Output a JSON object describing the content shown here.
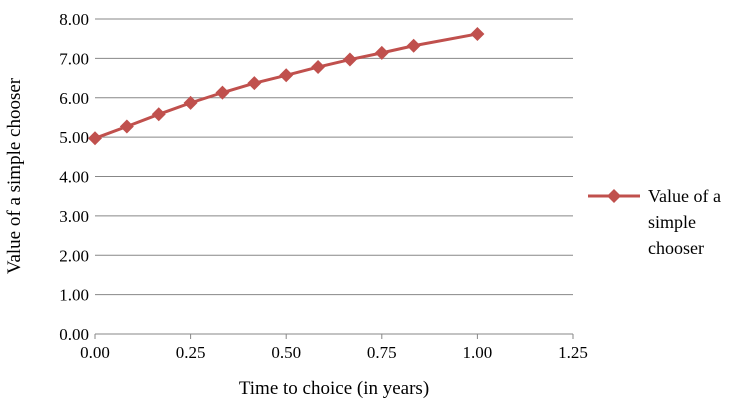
{
  "chart_data": {
    "type": "line",
    "title": "",
    "xlabel": "Time to choice (in years)",
    "ylabel": "Value of a simple chooser",
    "xlim": [
      0,
      1.25
    ],
    "ylim": [
      0,
      8
    ],
    "x_ticks": [
      "0.00",
      "0.25",
      "0.50",
      "0.75",
      "1.00",
      "1.25"
    ],
    "y_ticks": [
      "0.00",
      "1.00",
      "2.00",
      "3.00",
      "4.00",
      "5.00",
      "6.00",
      "7.00",
      "8.00"
    ],
    "grid": "horizontal",
    "legend_position": "right",
    "series": [
      {
        "name": "Value of a simple chooser",
        "color": "#C0504D",
        "marker": "diamond",
        "x": [
          0,
          0.0833,
          0.1667,
          0.25,
          0.3333,
          0.4167,
          0.5,
          0.5833,
          0.6667,
          0.75,
          0.8333,
          1.0
        ],
        "y": [
          4.97,
          5.27,
          5.58,
          5.87,
          6.13,
          6.37,
          6.57,
          6.78,
          6.97,
          7.14,
          7.32,
          7.62
        ]
      }
    ],
    "legend_lines": [
      "Value of a",
      "simple",
      "chooser"
    ]
  }
}
